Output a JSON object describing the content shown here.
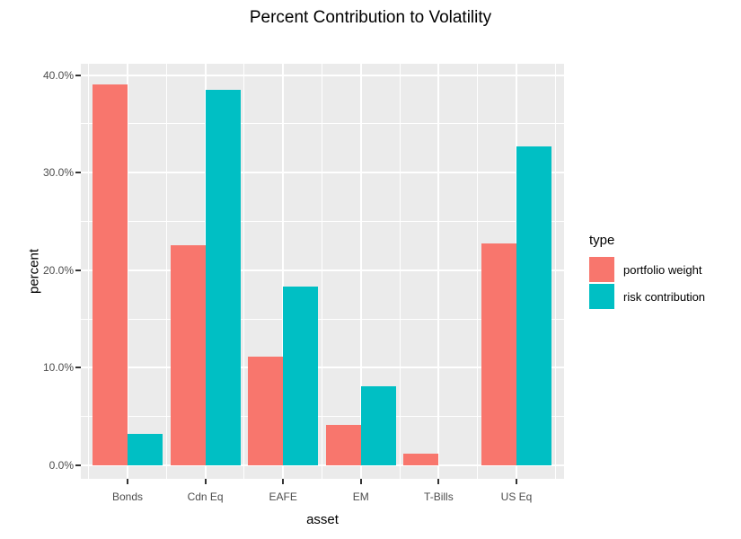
{
  "chart_data": {
    "type": "bar",
    "title": "Percent Contribution to Volatility",
    "xlabel": "asset",
    "ylabel": "percent",
    "categories": [
      "Bonds",
      "Cdn Eq",
      "EAFE",
      "EM",
      "T-Bills",
      "US Eq"
    ],
    "series": [
      {
        "name": "portfolio weight",
        "color": "#F8766D",
        "values": [
          39.0,
          22.6,
          11.1,
          4.1,
          1.2,
          22.7
        ]
      },
      {
        "name": "risk contribution",
        "color": "#00BFC4",
        "values": [
          3.2,
          38.5,
          18.3,
          8.1,
          0.0,
          32.7
        ]
      }
    ],
    "ylim": [
      0,
      40
    ],
    "yticks": [
      0,
      10,
      20,
      30,
      40
    ],
    "ytick_labels": [
      "0.0%",
      "10.0%",
      "20.0%",
      "30.0%",
      "40.0%"
    ],
    "legend_title": "type",
    "legend_position": "right",
    "grid": true,
    "panel_bg": "#EBEBEB",
    "grid_color": "#FFFFFF",
    "tick_text_color": "#4D4D4D"
  }
}
